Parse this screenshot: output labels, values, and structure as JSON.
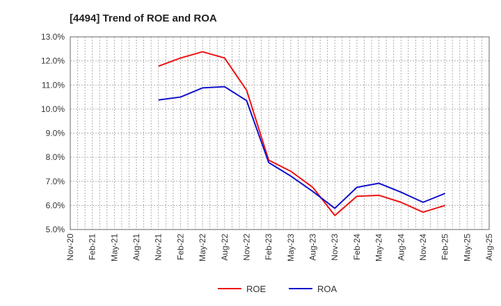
{
  "chart_data": {
    "type": "line",
    "title": "[4494]  Trend of ROE and ROA",
    "xlabel": "",
    "ylabel": "",
    "y_ticks": [
      "5.0%",
      "6.0%",
      "7.0%",
      "8.0%",
      "9.0%",
      "10.0%",
      "11.0%",
      "12.0%",
      "13.0%"
    ],
    "ylim": [
      5.0,
      13.0
    ],
    "x_ticks": [
      "Nov-20",
      "Feb-21",
      "May-21",
      "Aug-21",
      "Nov-21",
      "Feb-22",
      "May-22",
      "Aug-22",
      "Nov-22",
      "Feb-23",
      "May-23",
      "Aug-23",
      "Nov-23",
      "Feb-24",
      "May-24",
      "Aug-24",
      "Nov-24",
      "Feb-25",
      "May-25",
      "Aug-25"
    ],
    "grid": true,
    "legend_position": "bottom",
    "series": [
      {
        "name": "ROE",
        "color": "#ee1111",
        "x": [
          "Nov-21",
          "Feb-22",
          "May-22",
          "Aug-22",
          "Nov-22",
          "Feb-23",
          "May-23",
          "Aug-23",
          "Nov-23",
          "Feb-24",
          "May-24",
          "Aug-24",
          "Nov-24",
          "Feb-25"
        ],
        "values": [
          11.78,
          12.12,
          12.38,
          12.12,
          10.78,
          7.88,
          7.42,
          6.75,
          5.58,
          6.38,
          6.42,
          6.13,
          5.72,
          6.0
        ]
      },
      {
        "name": "ROA",
        "color": "#1111cc",
        "x": [
          "Nov-21",
          "Feb-22",
          "May-22",
          "Aug-22",
          "Nov-22",
          "Feb-23",
          "May-23",
          "Aug-23",
          "Nov-23",
          "Feb-24",
          "May-24",
          "Aug-24",
          "Nov-24",
          "Feb-25"
        ],
        "values": [
          10.38,
          10.5,
          10.88,
          10.93,
          10.35,
          7.78,
          7.22,
          6.58,
          5.88,
          6.75,
          6.92,
          6.55,
          6.13,
          6.5
        ]
      }
    ]
  }
}
